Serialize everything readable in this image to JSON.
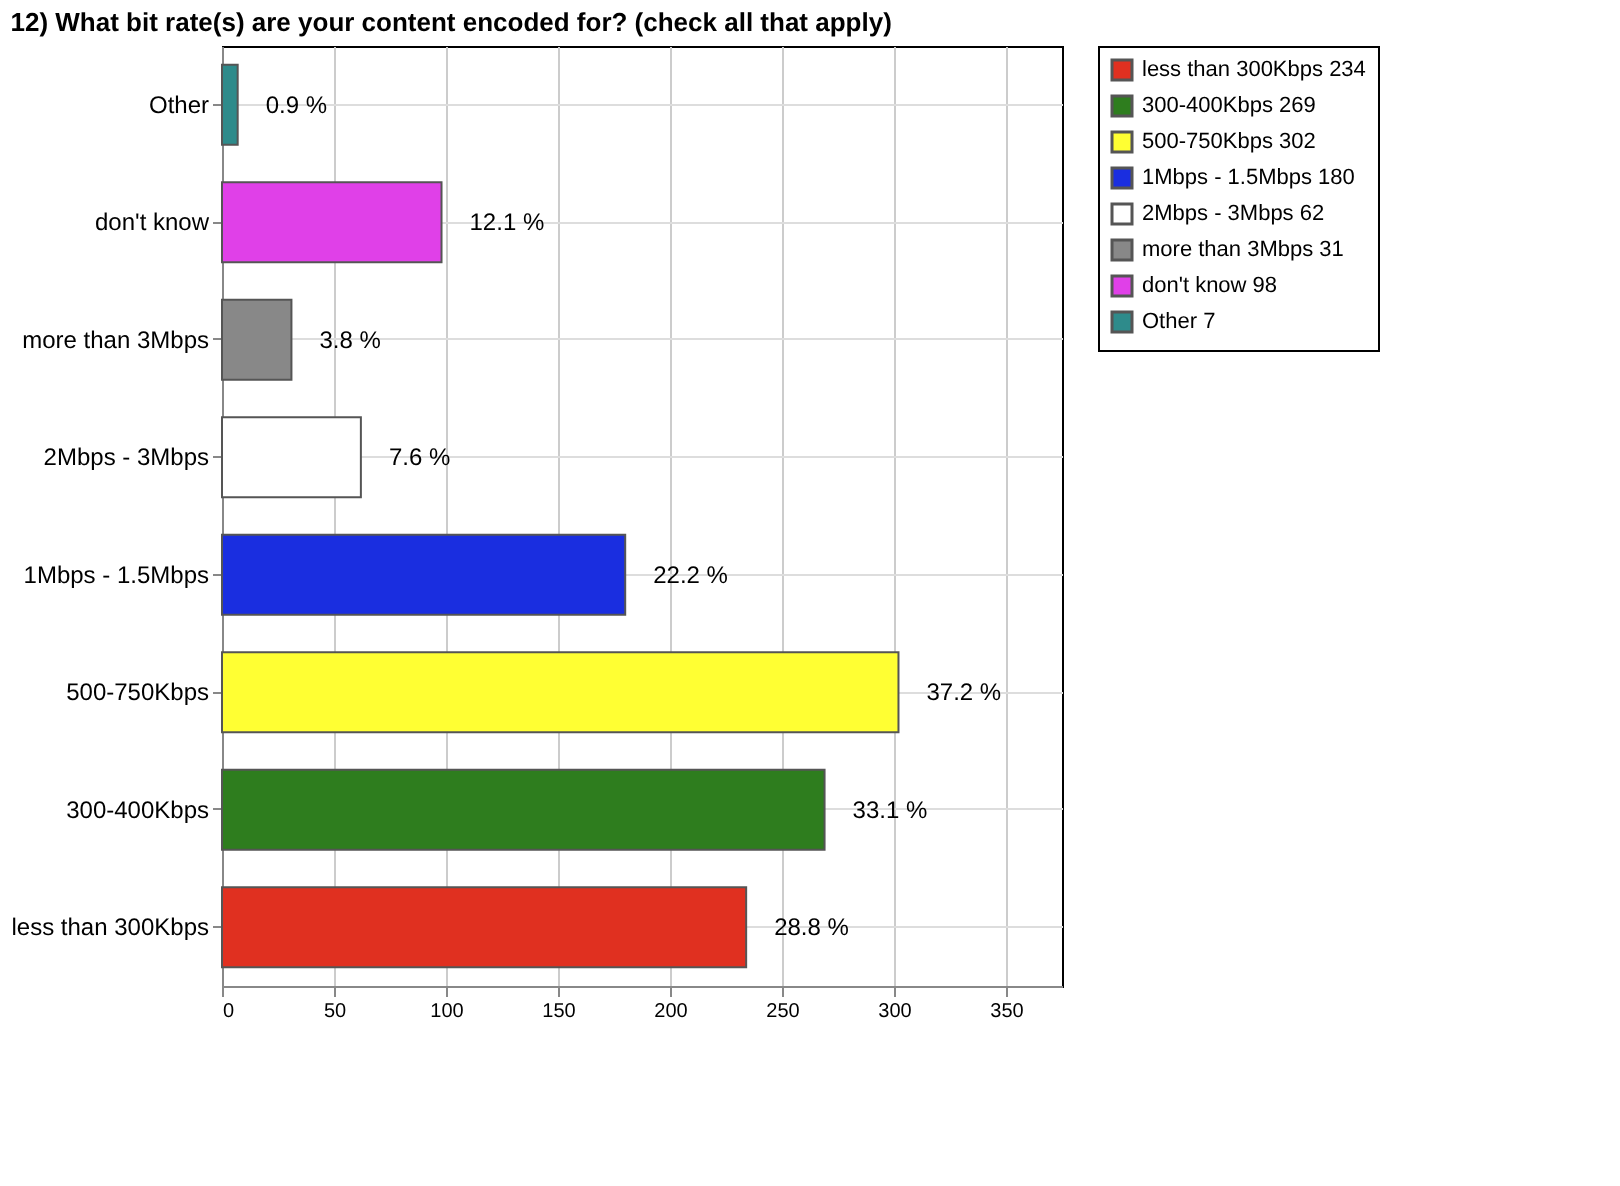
{
  "chart_data": {
    "type": "bar",
    "orientation": "horizontal",
    "title": "12) What bit rate(s) are your content encoded for? (check all that apply)",
    "categories": [
      "Other",
      "don't know",
      "more than 3Mbps",
      "2Mbps - 3Mbps",
      "1Mbps - 1.5Mbps",
      "500-750Kbps",
      "300-400Kbps",
      "less than 300Kbps"
    ],
    "series": [
      {
        "name": "less than 300Kbps 234",
        "color": "#e03020",
        "values": [
          null,
          null,
          null,
          null,
          null,
          null,
          null,
          234
        ]
      },
      {
        "name": "300-400Kbps 269",
        "color": "#2e7d1e",
        "values": [
          null,
          null,
          null,
          null,
          null,
          null,
          269,
          null
        ]
      },
      {
        "name": "500-750Kbps 302",
        "color": "#ffff33",
        "values": [
          null,
          null,
          null,
          null,
          null,
          302,
          null,
          null
        ]
      },
      {
        "name": "1Mbps - 1.5Mbps 180",
        "color": "#1a2ee0",
        "values": [
          null,
          null,
          null,
          null,
          180,
          null,
          null,
          null
        ]
      },
      {
        "name": "2Mbps - 3Mbps 62",
        "color": "#ffffff",
        "values": [
          null,
          null,
          null,
          62,
          null,
          null,
          null,
          null
        ]
      },
      {
        "name": "more than 3Mbps 31",
        "color": "#888888",
        "values": [
          null,
          null,
          31,
          null,
          null,
          null,
          null,
          null
        ]
      },
      {
        "name": "don't know 98",
        "color": "#e040e8",
        "values": [
          null,
          98,
          null,
          null,
          null,
          null,
          null,
          null
        ]
      },
      {
        "name": "Other 7",
        "color": "#2e8b8b",
        "values": [
          7,
          null,
          null,
          null,
          null,
          null,
          null,
          null
        ]
      }
    ],
    "value_labels": [
      "0.9 %",
      "12.1 %",
      "3.8 %",
      "7.6 %",
      "22.2 %",
      "37.2 %",
      "33.1 %",
      "28.8 %"
    ],
    "xlim": [
      0,
      375
    ],
    "xticks": [
      0,
      50,
      100,
      150,
      200,
      250,
      300,
      350
    ],
    "grid": true,
    "legend": "top right"
  }
}
